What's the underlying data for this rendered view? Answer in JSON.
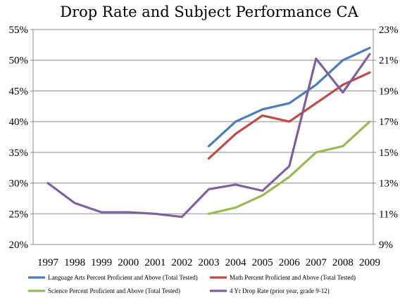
{
  "chart_data": {
    "type": "line",
    "title": "Drop Rate and Subject Performance CA",
    "x": [
      "1997",
      "1998",
      "1999",
      "2000",
      "2001",
      "2002",
      "2003",
      "2004",
      "2005",
      "2006",
      "2007",
      "2008",
      "2009"
    ],
    "y_left": {
      "range": [
        20,
        55
      ],
      "ticks": [
        "20%",
        "25%",
        "30%",
        "35%",
        "40%",
        "45%",
        "50%",
        "55%"
      ]
    },
    "y_right": {
      "range": [
        9,
        23
      ],
      "ticks": [
        "9%",
        "11%",
        "13%",
        "15%",
        "17%",
        "19%",
        "21%",
        "23%"
      ]
    },
    "grid": true,
    "legend_position": "bottom",
    "series": [
      {
        "name": "Language Arts Percent Proficient and Above (Total Tested)",
        "axis": "left",
        "color": "#4a7ebb",
        "values": [
          null,
          null,
          null,
          null,
          null,
          null,
          36,
          40,
          42,
          43,
          46,
          50,
          52
        ]
      },
      {
        "name": "Math Percent Proficient and Above (Total Tested)",
        "axis": "left",
        "color": "#be4b48",
        "values": [
          null,
          null,
          null,
          null,
          null,
          null,
          34,
          38,
          41,
          40,
          43,
          46,
          48
        ]
      },
      {
        "name": "Science Percent Proficient and Above (Total Tested)",
        "axis": "left",
        "color": "#98b954",
        "values": [
          null,
          null,
          null,
          null,
          null,
          null,
          25,
          26,
          28,
          31,
          35,
          36,
          40
        ]
      },
      {
        "name": "4 Yr Drop Rate (prior year, grade 9-12)",
        "axis": "right",
        "color": "#7d60a0",
        "values": [
          13.0,
          11.7,
          11.1,
          11.1,
          11.0,
          10.8,
          12.6,
          12.9,
          12.5,
          14.1,
          21.1,
          18.9,
          21.4
        ]
      }
    ]
  }
}
